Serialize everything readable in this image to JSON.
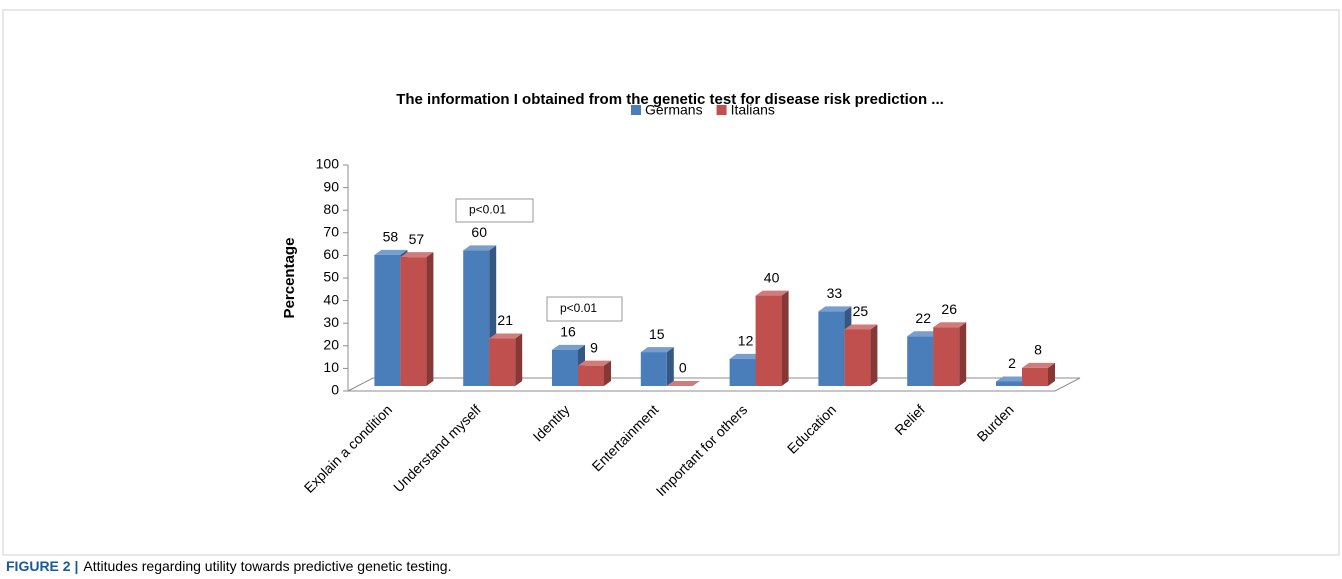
{
  "chart_data": {
    "type": "bar3d",
    "title": "The information I obtained from the genetic test for disease risk prediction ...",
    "y_label": "Percentage",
    "categories": [
      "Explain a condition",
      "Understand myself",
      "Identity",
      "Entertainment",
      "Important for others",
      "Education",
      "Relief",
      "Burden"
    ],
    "series": [
      {
        "name": "Germans",
        "color": "#4a7ebb",
        "values": [
          58,
          60,
          16,
          15,
          12,
          33,
          22,
          2
        ]
      },
      {
        "name": "Italians",
        "color": "#c0504d",
        "values": [
          57,
          21,
          9,
          0,
          40,
          25,
          26,
          8
        ]
      }
    ],
    "ylim": [
      0,
      100
    ],
    "yticks": [
      0,
      10,
      20,
      30,
      40,
      50,
      60,
      70,
      80,
      90,
      100
    ],
    "grid": false,
    "legend": "top",
    "annotations": [
      "p<0.01",
      "p<0.01"
    ]
  },
  "figure_caption": {
    "label": "FIGURE 2 |",
    "text": "Attitudes regarding utility towards predictive genetic testing."
  }
}
